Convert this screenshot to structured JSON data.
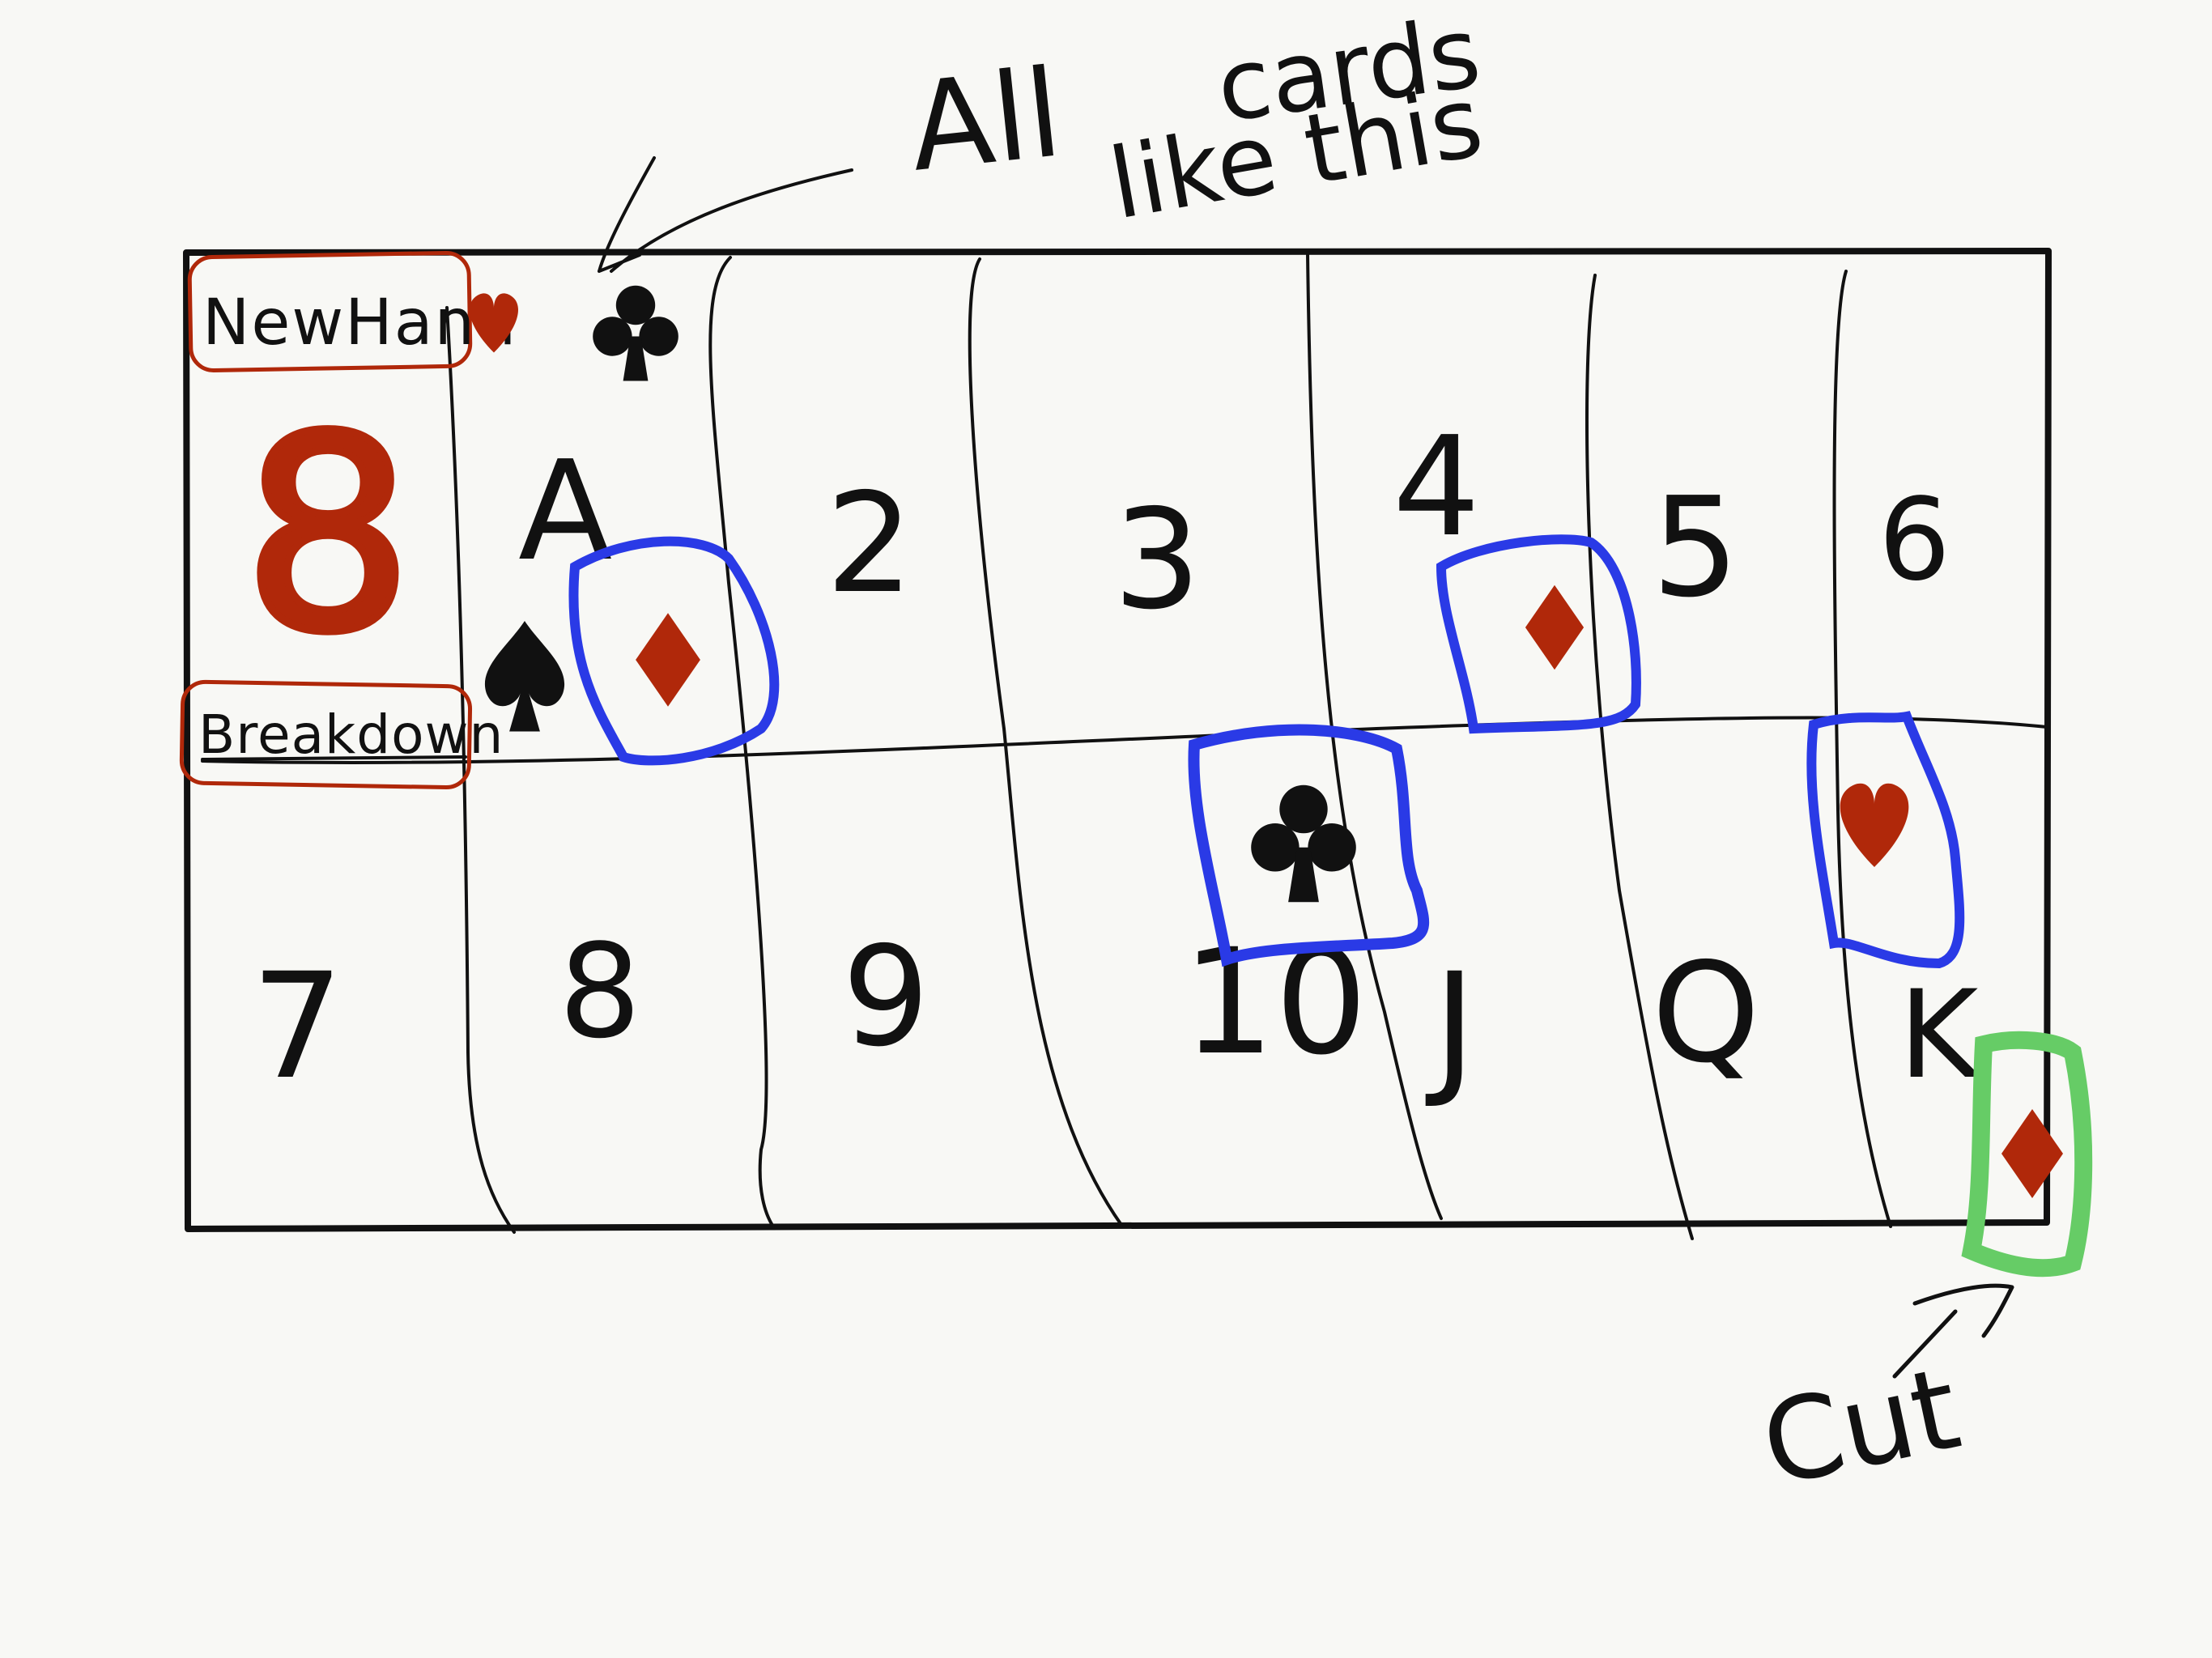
{
  "annotations": {
    "top_note_line1": "All",
    "top_note_line2": "cards",
    "top_note_line3": "like this",
    "cut_label": "Cut"
  },
  "header_cell": {
    "new_hand_label": "NewHand",
    "count_value": "8",
    "breakdown_label": "Breakdown"
  },
  "ranks_row1": [
    "A",
    "2",
    "3",
    "4",
    "5",
    "6"
  ],
  "ranks_row2": [
    "7",
    "8",
    "9",
    "10",
    "J",
    "Q",
    "K"
  ],
  "suits": {
    "heart": "heart-icon",
    "club": "club-icon",
    "spade": "spade-icon",
    "diamond": "diamond-icon"
  },
  "colors": {
    "ink": "#111111",
    "suit_red": "#b0280a",
    "marked_card_blue": "#2a3ae6",
    "cut_card_green": "#66cc66",
    "header_box_red": "#b0280a"
  }
}
